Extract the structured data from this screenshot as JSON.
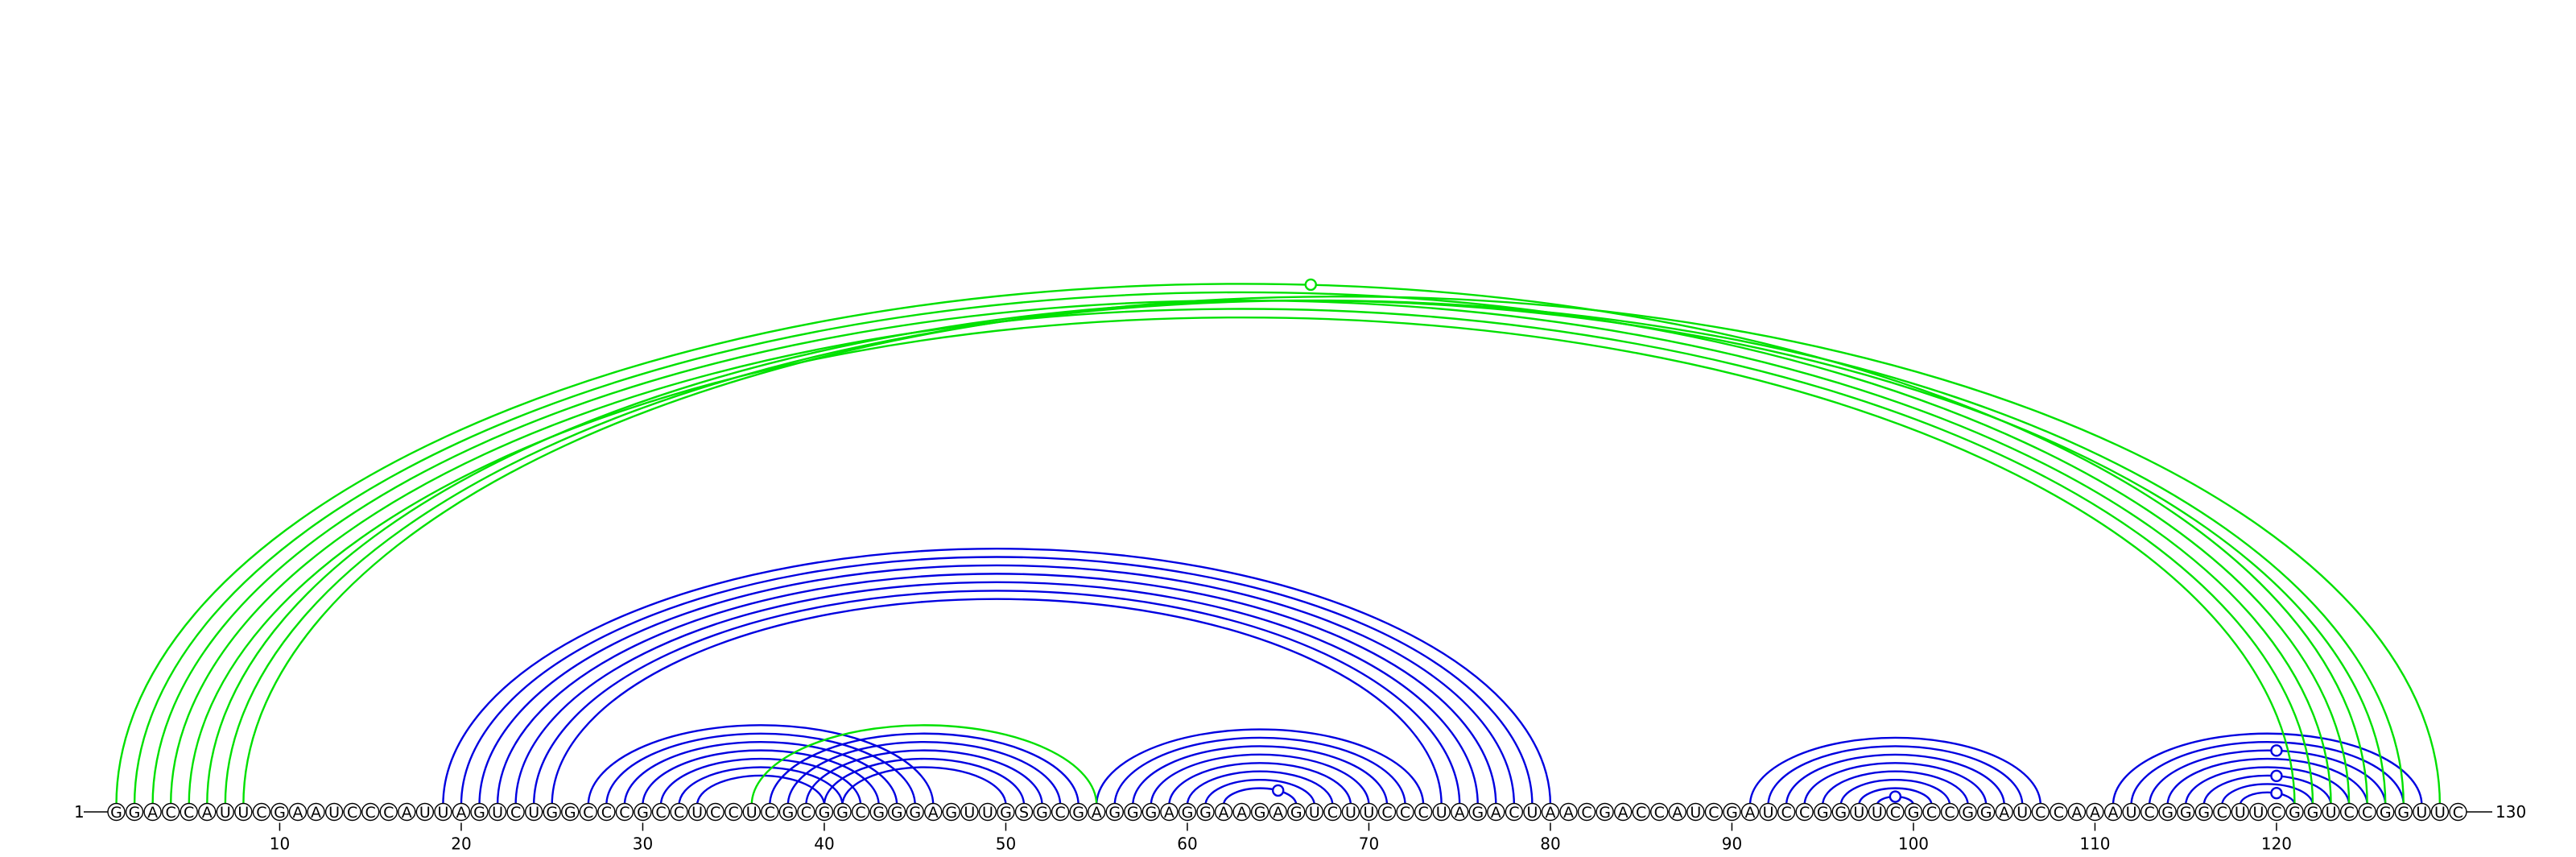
{
  "sequence": "GGACCAUUCGAAUCCCAUUAGUCUGGCCCGCCUCCUCGCGGCGGGAGUUGSGCGAGGGAGGAAGAGUCUUCCCUAGACUAACGACCAUCGAUCCGGUUCGCCGGAUCCAAAUCGGGCUUCGGUCCGGUUC",
  "start_label": "1",
  "end_label": "130",
  "ticks": [
    10,
    20,
    30,
    40,
    50,
    60,
    70,
    80,
    90,
    100,
    110,
    120
  ],
  "colors": {
    "inner_pairs": "#0000e0",
    "outer_pairs": "#00e000",
    "circle_stroke": "#000000",
    "background": "#ffffff"
  },
  "pair_groups": [
    {
      "color": "inner_pairs",
      "pairs": [
        [
          19,
          80
        ],
        [
          20,
          79
        ],
        [
          21,
          78
        ],
        [
          22,
          77
        ],
        [
          23,
          76
        ],
        [
          24,
          75
        ],
        [
          25,
          74
        ],
        [
          27,
          46
        ],
        [
          28,
          45
        ],
        [
          29,
          44
        ],
        [
          30,
          43
        ],
        [
          31,
          42
        ],
        [
          32,
          41
        ],
        [
          33,
          40
        ],
        [
          37,
          54
        ],
        [
          38,
          53
        ],
        [
          39,
          52
        ],
        [
          40,
          51
        ],
        [
          41,
          50
        ],
        [
          55,
          73
        ],
        [
          56,
          72
        ],
        [
          57,
          71
        ],
        [
          58,
          70
        ],
        [
          59,
          69
        ],
        [
          60,
          68
        ],
        [
          61,
          67
        ],
        [
          62,
          66
        ],
        [
          91,
          107
        ],
        [
          92,
          106
        ],
        [
          93,
          105
        ],
        [
          94,
          104
        ],
        [
          95,
          103
        ],
        [
          96,
          102
        ],
        [
          97,
          101
        ],
        [
          98,
          100
        ],
        [
          111,
          128
        ],
        [
          112,
          127
        ],
        [
          113,
          126
        ],
        [
          114,
          125
        ],
        [
          115,
          124
        ],
        [
          116,
          123
        ],
        [
          117,
          122
        ],
        [
          118,
          121
        ]
      ]
    },
    {
      "color": "outer_pairs",
      "pairs": [
        [
          1,
          125
        ],
        [
          2,
          124
        ],
        [
          3,
          123
        ],
        [
          4,
          122
        ],
        [
          5,
          121
        ],
        [
          6,
          126
        ],
        [
          7,
          127
        ],
        [
          8,
          129
        ],
        [
          36,
          55
        ]
      ]
    }
  ],
  "markers": [
    {
      "pos": 66.8,
      "pair": [
        1,
        125
      ],
      "color": "outer_pairs"
    },
    {
      "pos": 65,
      "pair": [
        62,
        66
      ],
      "color": "inner_pairs"
    },
    {
      "pos": 99,
      "pair": [
        98,
        100
      ],
      "color": "inner_pairs"
    },
    {
      "pos": 120,
      "pair": [
        113,
        126
      ],
      "color": "inner_pairs"
    },
    {
      "pos": 120,
      "pair": [
        116,
        123
      ],
      "color": "inner_pairs"
    },
    {
      "pos": 120,
      "pair": [
        118,
        121
      ],
      "color": "inner_pairs"
    }
  ]
}
